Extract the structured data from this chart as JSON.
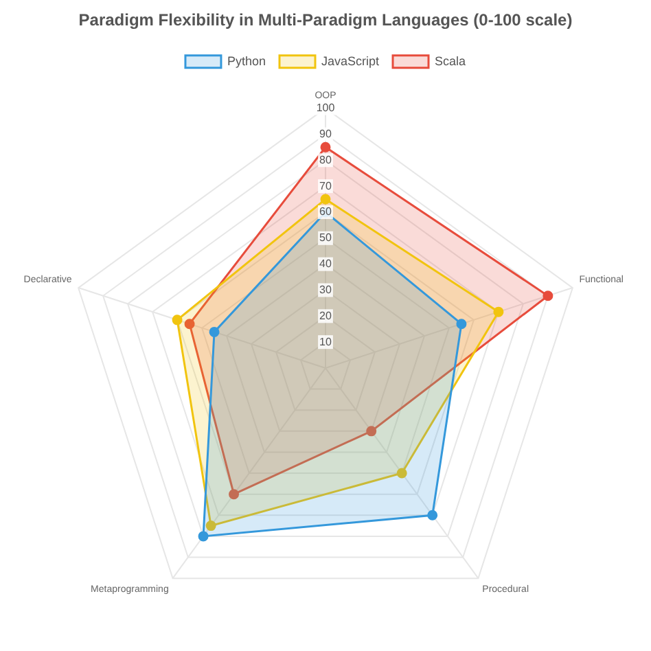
{
  "chart_data": {
    "type": "radar",
    "title": "Paradigm Flexibility in Multi-Paradigm Languages (0-100 scale)",
    "categories": [
      "OOP",
      "Functional",
      "Procedural",
      "Metaprogramming",
      "Declarative"
    ],
    "series": [
      {
        "name": "Python",
        "color": "#3498db",
        "values": [
          60,
          55,
          70,
          80,
          45
        ]
      },
      {
        "name": "JavaScript",
        "color": "#f1c40f",
        "values": [
          65,
          70,
          50,
          75,
          60
        ]
      },
      {
        "name": "Scala",
        "color": "#e74c3c",
        "values": [
          85,
          90,
          30,
          60,
          55
        ]
      }
    ],
    "ylim": [
      0,
      100
    ],
    "yticks": [
      10,
      20,
      30,
      40,
      50,
      60,
      70,
      80,
      90,
      100
    ],
    "grid": true,
    "legend": "top",
    "marker": "circle"
  }
}
